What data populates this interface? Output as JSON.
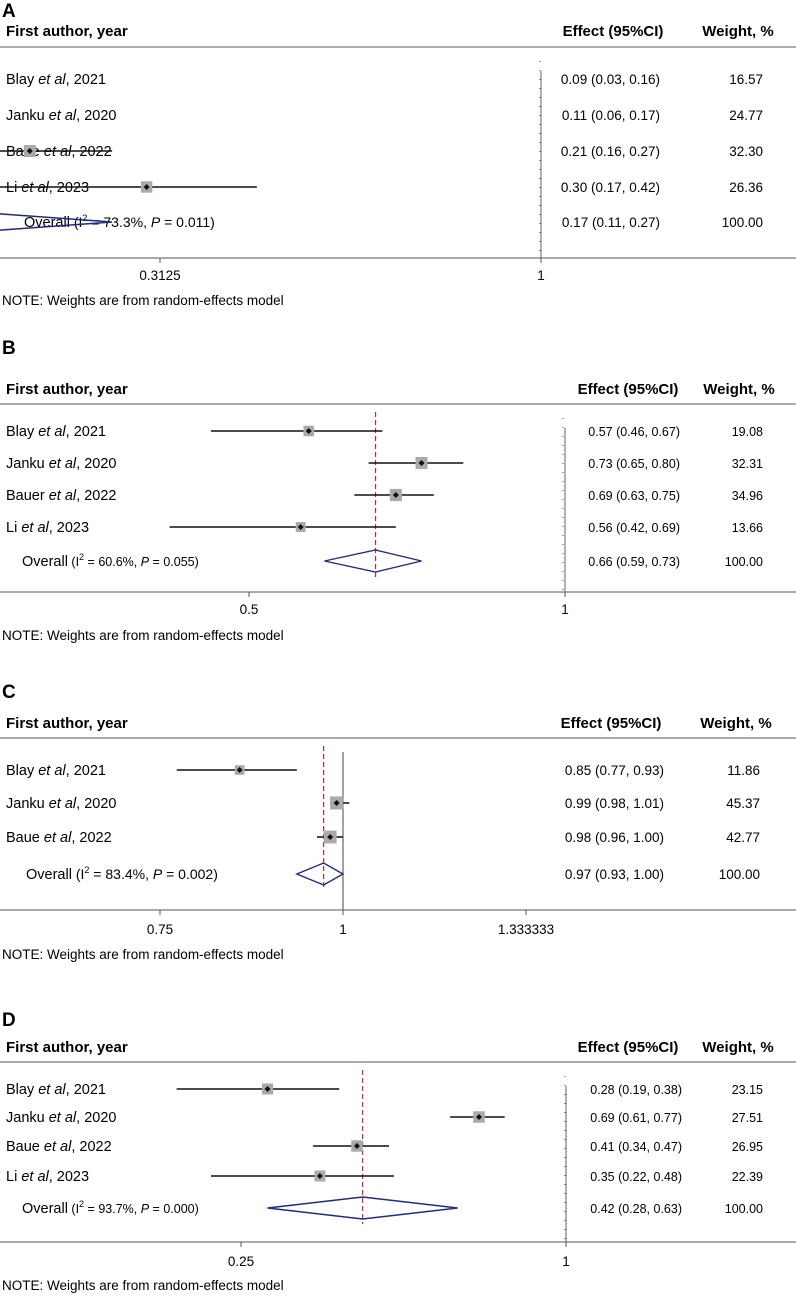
{
  "figure": {
    "header_author": "First author, year",
    "header_effect": "Effect (95%CI)",
    "header_weight": "Weight, %",
    "note": "NOTE: Weights are from random-effects model",
    "overall_label": "Overall"
  },
  "chart_data": [
    {
      "type": "forest",
      "panel": "A",
      "scale": "log",
      "xlim": [
        0.16,
        1.0
      ],
      "null_line": 1,
      "ticks": [
        "0.3125",
        "1"
      ],
      "overall": {
        "estimate": 0.17,
        "lower": 0.11,
        "upper": 0.27,
        "text": "0.17 (0.11, 0.27)",
        "weight": "100.00",
        "i2": "73.3%",
        "p": "0.011"
      },
      "studies": [
        {
          "author": "Blay",
          "year": "2021",
          "estimate": 0.09,
          "lower": 0.03,
          "upper": 0.16,
          "text": "0.09 (0.03, 0.16)",
          "weight": "16.57"
        },
        {
          "author": "Janku",
          "year": "2020",
          "estimate": 0.11,
          "lower": 0.06,
          "upper": 0.17,
          "text": "0.11 (0.06, 0.17)",
          "weight": "24.77"
        },
        {
          "author": "Baue",
          "year": "2022",
          "estimate": 0.21,
          "lower": 0.16,
          "upper": 0.27,
          "text": "0.21 (0.16, 0.27)",
          "weight": "32.30"
        },
        {
          "author": "Li",
          "year": "2023",
          "estimate": 0.3,
          "lower": 0.17,
          "upper": 0.42,
          "text": "0.30 (0.17, 0.42)",
          "weight": "26.36"
        }
      ]
    },
    {
      "type": "forest",
      "panel": "B",
      "scale": "log",
      "null_line": 1,
      "ticks": [
        "0.5",
        "1"
      ],
      "overall": {
        "estimate": 0.66,
        "lower": 0.59,
        "upper": 0.73,
        "text": "0.66 (0.59, 0.73)",
        "weight": "100.00",
        "i2": "60.6%",
        "p": "0.055"
      },
      "studies": [
        {
          "author": "Blay",
          "year": "2021",
          "estimate": 0.57,
          "lower": 0.46,
          "upper": 0.67,
          "text": "0.57 (0.46, 0.67)",
          "weight": "19.08"
        },
        {
          "author": "Janku",
          "year": "2020",
          "estimate": 0.73,
          "lower": 0.65,
          "upper": 0.8,
          "text": "0.73 (0.65, 0.80)",
          "weight": "32.31"
        },
        {
          "author": "Bauer",
          "year": "2022",
          "estimate": 0.69,
          "lower": 0.63,
          "upper": 0.75,
          "text": "0.69 (0.63, 0.75)",
          "weight": "34.96"
        },
        {
          "author": "Li",
          "year": "2023",
          "estimate": 0.56,
          "lower": 0.42,
          "upper": 0.69,
          "text": "0.56 (0.42, 0.69)",
          "weight": "13.66"
        }
      ]
    },
    {
      "type": "forest",
      "panel": "C",
      "scale": "log",
      "null_line": 1,
      "ticks": [
        "0.75",
        "1",
        "1.333333"
      ],
      "overall": {
        "estimate": 0.97,
        "lower": 0.93,
        "upper": 1.0,
        "text": "0.97 (0.93, 1.00)",
        "weight": "100.00",
        "i2": "83.4%",
        "p": "0.002"
      },
      "studies": [
        {
          "author": "Blay",
          "year": "2021",
          "estimate": 0.85,
          "lower": 0.77,
          "upper": 0.93,
          "text": "0.85 (0.77, 0.93)",
          "weight": "11.86"
        },
        {
          "author": "Janku",
          "year": "2020",
          "estimate": 0.99,
          "lower": 0.98,
          "upper": 1.01,
          "text": "0.99 (0.98, 1.01)",
          "weight": "45.37"
        },
        {
          "author": "Baue",
          "year": "2022",
          "estimate": 0.98,
          "lower": 0.96,
          "upper": 1.0,
          "text": "0.98 (0.96, 1.00)",
          "weight": "42.77"
        }
      ]
    },
    {
      "type": "forest",
      "panel": "D",
      "scale": "log",
      "null_line": 1,
      "ticks": [
        "0.25",
        "1"
      ],
      "overall": {
        "estimate": 0.42,
        "lower": 0.28,
        "upper": 0.63,
        "text": "0.42 (0.28, 0.63)",
        "weight": "100.00",
        "i2": "93.7%",
        "p": "0.000"
      },
      "studies": [
        {
          "author": "Blay",
          "year": "2021",
          "estimate": 0.28,
          "lower": 0.19,
          "upper": 0.38,
          "text": "0.28 (0.19, 0.38)",
          "weight": "23.15"
        },
        {
          "author": "Janku",
          "year": "2020",
          "estimate": 0.69,
          "lower": 0.61,
          "upper": 0.77,
          "text": "0.69 (0.61, 0.77)",
          "weight": "27.51"
        },
        {
          "author": "Baue",
          "year": "2022",
          "estimate": 0.41,
          "lower": 0.34,
          "upper": 0.47,
          "text": "0.41 (0.34, 0.47)",
          "weight": "26.95"
        },
        {
          "author": "Li",
          "year": "2023",
          "estimate": 0.35,
          "lower": 0.22,
          "upper": 0.48,
          "text": "0.35 (0.22, 0.48)",
          "weight": "22.39"
        }
      ]
    }
  ]
}
